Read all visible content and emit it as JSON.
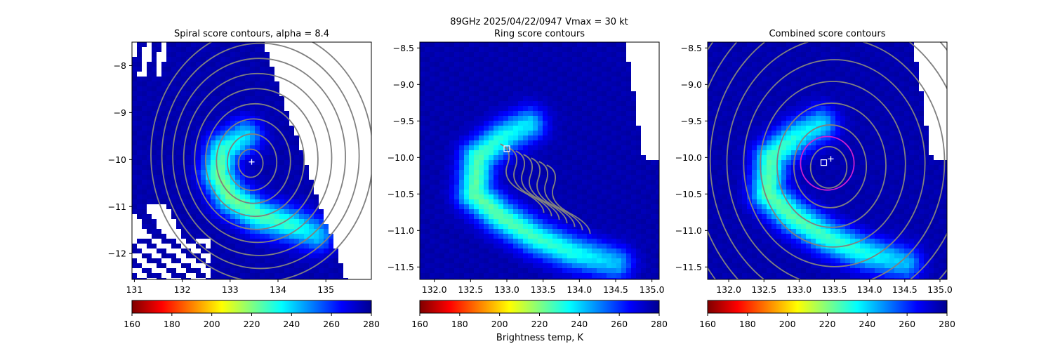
{
  "figure": {
    "suptitle_line1": "89GHz  2025/04/22/0947    Vmax = 30 kt"
  },
  "colormap": {
    "name": "jet_r",
    "stops": [
      "#7f0000",
      "#ff0000",
      "#ff8000",
      "#ffff00",
      "#80ff80",
      "#00ffff",
      "#0080ff",
      "#0000ff",
      "#00008f"
    ]
  },
  "colors": {
    "contour": "#808080",
    "ring": "#d21fcf",
    "marker": "#ffffff",
    "missing": "#ffffff"
  },
  "chart_data": [
    {
      "type": "heatmap",
      "title": "Spiral score contours, alpha =  8.4",
      "xlim": [
        130.95,
        135.95
      ],
      "ylim": [
        -12.55,
        -7.5
      ],
      "xticks": [
        "131",
        "132",
        "133",
        "134",
        "135"
      ],
      "xtick_values": [
        131,
        132,
        133,
        134,
        135
      ],
      "yticks": [
        "−8",
        "−9",
        "−10",
        "−11",
        "−12"
      ],
      "ytick_values": [
        -8,
        -9,
        -10,
        -11,
        -12
      ],
      "colorbar": {
        "min": 160,
        "max": 280,
        "ticks": [
          "160",
          "180",
          "200",
          "220",
          "240",
          "260",
          "280"
        ],
        "label": ""
      },
      "center_cross": {
        "x": 133.45,
        "y": -10.05
      },
      "contour_center": {
        "x": 133.4,
        "y": -10.1
      },
      "band": {
        "points": [
          [
            133.3,
            -9.5
          ],
          [
            132.85,
            -9.8
          ],
          [
            132.75,
            -10.3
          ],
          [
            133.0,
            -10.8
          ],
          [
            133.6,
            -11.2
          ],
          [
            134.3,
            -11.4
          ],
          [
            134.8,
            -11.6
          ]
        ],
        "values": [
          238,
          228,
          222,
          222,
          226,
          230,
          240
        ]
      },
      "grid": false
    },
    {
      "type": "heatmap",
      "title": "Ring score contours",
      "xlim": [
        131.8,
        135.1
      ],
      "ylim": [
        -11.67,
        -8.42
      ],
      "xticks": [
        "132.0",
        "132.5",
        "133.0",
        "133.5",
        "134.0",
        "134.5",
        "135.0"
      ],
      "xtick_values": [
        132.0,
        132.5,
        133.0,
        133.5,
        134.0,
        134.5,
        135.0
      ],
      "yticks": [
        "−8.5",
        "−9.0",
        "−9.5",
        "−10.0",
        "−10.5",
        "−11.0",
        "−11.5"
      ],
      "ytick_values": [
        -8.5,
        -9.0,
        -9.5,
        -10.0,
        -10.5,
        -11.0,
        -11.5
      ],
      "colorbar": {
        "min": 160,
        "max": 280,
        "ticks": [
          "160",
          "180",
          "200",
          "220",
          "240",
          "260",
          "280"
        ],
        "label": "Brightness temp, K"
      },
      "ring_marker_square": {
        "x": 133.0,
        "y": -9.88
      },
      "band": {
        "points": [
          [
            133.3,
            -9.55
          ],
          [
            132.95,
            -9.72
          ],
          [
            132.6,
            -10.0
          ],
          [
            132.55,
            -10.5
          ],
          [
            132.9,
            -10.8
          ],
          [
            133.4,
            -11.1
          ],
          [
            133.9,
            -11.3
          ],
          [
            134.5,
            -11.45
          ]
        ],
        "values": [
          238,
          232,
          226,
          224,
          225,
          228,
          232,
          242
        ]
      },
      "grid": false
    },
    {
      "type": "heatmap",
      "title": "Combined score contours",
      "xlim": [
        131.7,
        135.1
      ],
      "ylim": [
        -11.67,
        -8.42
      ],
      "xticks": [
        "132.0",
        "132.5",
        "133.0",
        "133.5",
        "134.0",
        "134.5",
        "135.0"
      ],
      "xtick_values": [
        132.0,
        132.5,
        133.0,
        133.5,
        134.0,
        134.5,
        135.0
      ],
      "yticks": [
        "−8.5",
        "−9.0",
        "−9.5",
        "−10.0",
        "−10.5",
        "−11.0",
        "−11.5"
      ],
      "ytick_values": [
        -8.5,
        -9.0,
        -9.5,
        -10.0,
        -10.5,
        -11.0,
        -11.5
      ],
      "colorbar": {
        "min": 160,
        "max": 280,
        "ticks": [
          "160",
          "180",
          "200",
          "220",
          "240",
          "260",
          "280"
        ],
        "label": ""
      },
      "center_cross": {
        "x": 133.45,
        "y": -10.02
      },
      "center_square": {
        "x": 133.35,
        "y": -10.07
      },
      "ring": {
        "x": 133.4,
        "y": -10.08,
        "radius_deg": 0.38
      },
      "contour_center": {
        "x": 133.4,
        "y": -10.15
      },
      "band": {
        "points": [
          [
            133.3,
            -9.55
          ],
          [
            132.95,
            -9.72
          ],
          [
            132.6,
            -10.0
          ],
          [
            132.55,
            -10.5
          ],
          [
            132.9,
            -10.8
          ],
          [
            133.4,
            -11.1
          ],
          [
            133.9,
            -11.3
          ],
          [
            134.5,
            -11.45
          ]
        ],
        "values": [
          238,
          232,
          226,
          224,
          225,
          228,
          232,
          242
        ]
      },
      "grid": false
    }
  ]
}
